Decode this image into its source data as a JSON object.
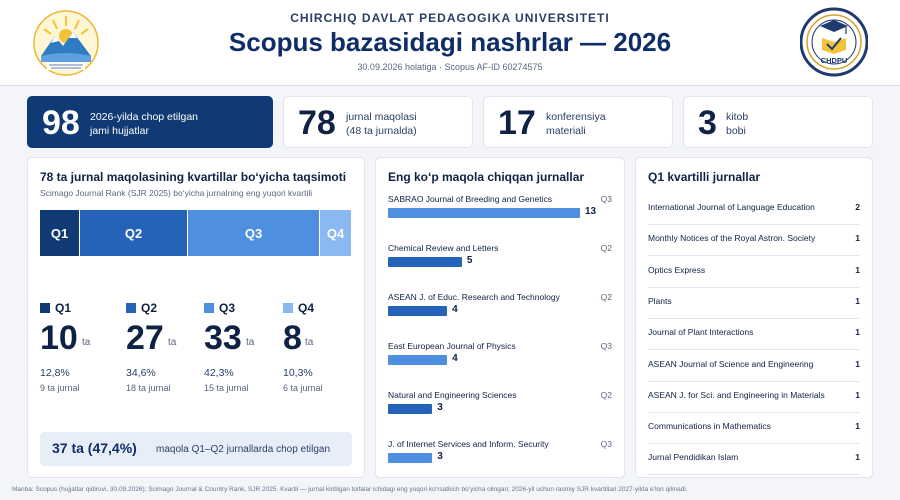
{
  "header": {
    "university": "CHIRCHIQ DAVLAT PEDAGOGIKA UNIVERSITETI",
    "title": "Scopus bazasidagi nashrlar — 2026",
    "subtitle": "30.09.2026 holatiga · Scopus AF-ID 60274575",
    "right_logo_text": "CHDPU"
  },
  "kpis": [
    {
      "value": "98",
      "line1": "2026-yilda chop etilgan",
      "line2": "jami hujjatlar"
    },
    {
      "value": "78",
      "line1": "jurnal maqolasi",
      "line2": "(48 ta jurnalda)"
    },
    {
      "value": "17",
      "line1": "konferensiya",
      "line2": "materiali"
    },
    {
      "value": "3",
      "line1": "kitob",
      "line2": "bobi"
    }
  ],
  "quartile_card": {
    "title": "78 ta jurnal maqolasining kvartillar bo‘yicha taqsimoti",
    "subtitle": "Scimago Journal Rank (SJR 2025) bo‘yicha jurnalning eng yuqori kvartili",
    "unit": "ta",
    "quartiles": [
      {
        "label": "Q1",
        "count": 10,
        "count_text": "10",
        "pct": "12,8%",
        "journals": "9 ta jurnal",
        "color": "#0f3a73"
      },
      {
        "label": "Q2",
        "count": 27,
        "count_text": "27",
        "pct": "34,6%",
        "journals": "18 ta jurnal",
        "color": "#2563b8"
      },
      {
        "label": "Q3",
        "count": 33,
        "count_text": "33",
        "pct": "42,3%",
        "journals": "15 ta jurnal",
        "color": "#4f8fe0"
      },
      {
        "label": "Q4",
        "count": 8,
        "count_text": "8",
        "pct": "10,3%",
        "journals": "6 ta jurnal",
        "color": "#8ab8f0"
      }
    ],
    "summary_bold": "37 ta (47,4%)",
    "summary_text": "maqola Q1–Q2 jurnallarda chop etilgan"
  },
  "top_journals": {
    "title": "Eng ko‘p maqola chiqqan jurnallar",
    "max": 13,
    "items": [
      {
        "name": "SABRAO Journal of Breeding and Genetics",
        "quartile": "Q3",
        "count": 13,
        "count_text": "13"
      },
      {
        "name": "Chemical Review and Letters",
        "quartile": "Q2",
        "count": 5,
        "count_text": "5"
      },
      {
        "name": "ASEAN J. of Educ. Research and Technology",
        "quartile": "Q2",
        "count": 4,
        "count_text": "4"
      },
      {
        "name": "East European Journal of Physics",
        "quartile": "Q3",
        "count": 4,
        "count_text": "4"
      },
      {
        "name": "Natural and Engineering Sciences",
        "quartile": "Q2",
        "count": 3,
        "count_text": "3"
      },
      {
        "name": "J. of Internet Services and Inform. Security",
        "quartile": "Q3",
        "count": 3,
        "count_text": "3"
      }
    ]
  },
  "q1_journals": {
    "title": "Q1 kvartilli jurnallar",
    "items": [
      {
        "name": "International Journal of Language Education",
        "count": "2"
      },
      {
        "name": "Monthly Notices of the Royal Astron. Society",
        "count": "1"
      },
      {
        "name": "Optics Express",
        "count": "1"
      },
      {
        "name": "Plants",
        "count": "1"
      },
      {
        "name": "Journal of Plant Interactions",
        "count": "1"
      },
      {
        "name": "ASEAN Journal of Science and Engineering",
        "count": "1"
      },
      {
        "name": "ASEAN J. for Sci. and Engineering in Materials",
        "count": "1"
      },
      {
        "name": "Communications in Mathematics",
        "count": "1"
      },
      {
        "name": "Jurnal Pendidikan Islam",
        "count": "1"
      }
    ]
  },
  "footer": "Manba: Scopus (hujjatlar qidiruvi, 30.09.2026); Scimago Journal & Country Rank, SJR 2025. Kvartil — jurnal kiritilgan toifalar ichidagi eng yuqori ko‘rsatkich bo‘yicha olingan; 2026-yil uchun rasmiy SJR kvartillari 2027-yilda e‘lon qilinadi."
}
